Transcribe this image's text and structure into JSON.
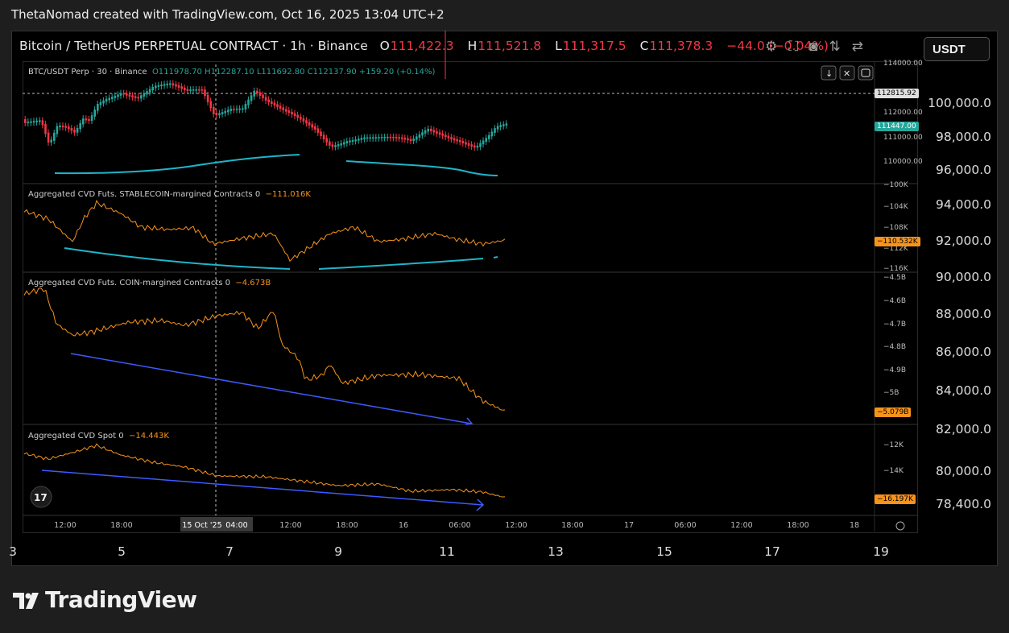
{
  "credit": "ThetaNomad created with TradingView.com, Oct 16, 2025 13:04 UTC+2",
  "outer": {
    "symbol": "Bitcoin / TetherUS PERPETUAL CONTRACT · 1h · Binance",
    "open_label": "O",
    "open": "111,422.3",
    "high_label": "H",
    "high": "111,521.8",
    "low_label": "L",
    "low": "111,317.5",
    "close_label": "C",
    "close": "111,378.3",
    "change": "−44.0 (−0.04%)",
    "currency": "USDT",
    "y_ticks": [
      "100,000.0",
      "98,000.0",
      "96,000.0",
      "94,000.0",
      "92,000.0",
      "90,000.0",
      "88,000.0",
      "86,000.0",
      "84,000.0",
      "82,000.0",
      "80,000.0",
      "78,400.0"
    ],
    "x_ticks": [
      "3",
      "5",
      "7",
      "9",
      "11",
      "13",
      "15",
      "17",
      "19"
    ]
  },
  "inner": {
    "symbol": "BTC/USDT Perp · 30 · Binance",
    "ohlc": "O111978.70 H112287.10 L111692.80 C112137.90 +159.20 (+0.14%)",
    "price_ticks": [
      "114000.00",
      "112000.00",
      "111000.00",
      "110000.00"
    ],
    "tag_dashed": "112815.92",
    "tag_last": "111447.00",
    "pane2_title": "Aggregated CVD Futs. STABLECOIN-margined Contracts 0",
    "pane2_value": "−111.016K",
    "pane2_ticks": [
      "−100K",
      "−104K",
      "−108K",
      "−112K",
      "−116K"
    ],
    "pane2_tag": "−110.532K",
    "pane3_title": "Aggregated CVD Futs. COIN-margined Contracts 0",
    "pane3_value": "−4.673B",
    "pane3_ticks": [
      "−4.5B",
      "−4.6B",
      "−4.7B",
      "−4.8B",
      "−4.9B",
      "−5B"
    ],
    "pane3_tag": "−5.079B",
    "pane4_title": "Aggregated CVD Spot 0",
    "pane4_value": "−14.443K",
    "pane4_ticks": [
      "−12K",
      "−14K"
    ],
    "pane4_tag": "−16.197K",
    "x_ticks": [
      "12:00",
      "18:00",
      "15 Oct '25",
      "04:00",
      "12:00",
      "18:00",
      "16",
      "06:00",
      "12:00",
      "18:00",
      "17",
      "06:00",
      "12:00",
      "18:00",
      "18"
    ]
  },
  "logo": "TradingView",
  "colors": {
    "up": "#26a69a",
    "down": "#f23645",
    "cvd": "#f7931a",
    "trend_cyan": "#1fb5c9",
    "trend_blue": "#3d5afe"
  },
  "icons": [
    "settings-icon",
    "fullscreen-icon",
    "camera-icon",
    "compare-icon",
    "arrow-down-icon",
    "expand-icon",
    "restore-icon"
  ]
}
